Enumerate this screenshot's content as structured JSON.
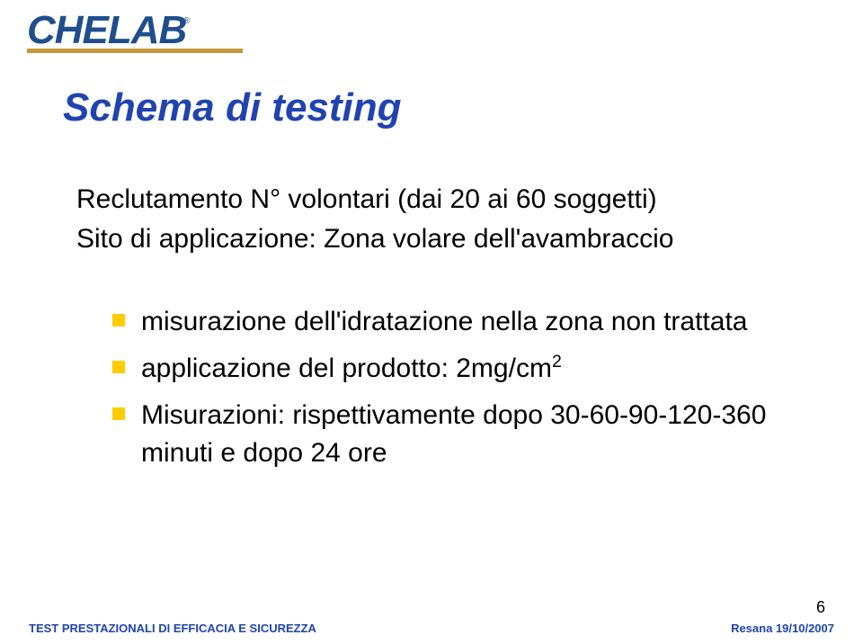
{
  "logo": {
    "text": "CHELAB",
    "underline_color": "#c49a3a",
    "text_color": "#1f4e8c"
  },
  "title": "Schema di testing",
  "title_color": "#2043b0",
  "lead": {
    "line1": "Reclutamento N° volontari (dai 20 ai 60 soggetti)",
    "line2": "Sito di applicazione: Zona volare dell'avambraccio"
  },
  "bullets": [
    {
      "text": "misurazione dell'idratazione nella zona non trattata"
    },
    {
      "text": "applicazione del prodotto: 2mg/cm",
      "sup": "2"
    },
    {
      "text": "Misurazioni: rispettivamente dopo 30-60-90-120-360 minuti e dopo 24 ore"
    }
  ],
  "bullet_marker_color": "#ffcc00",
  "footer": {
    "left": "TEST PRESTAZIONALI DI EFFICACIA E SICUREZZA",
    "right": "Resana 19/10/2007",
    "color": "#2043b0"
  },
  "page_number": "6",
  "background_color": "#ffffff"
}
